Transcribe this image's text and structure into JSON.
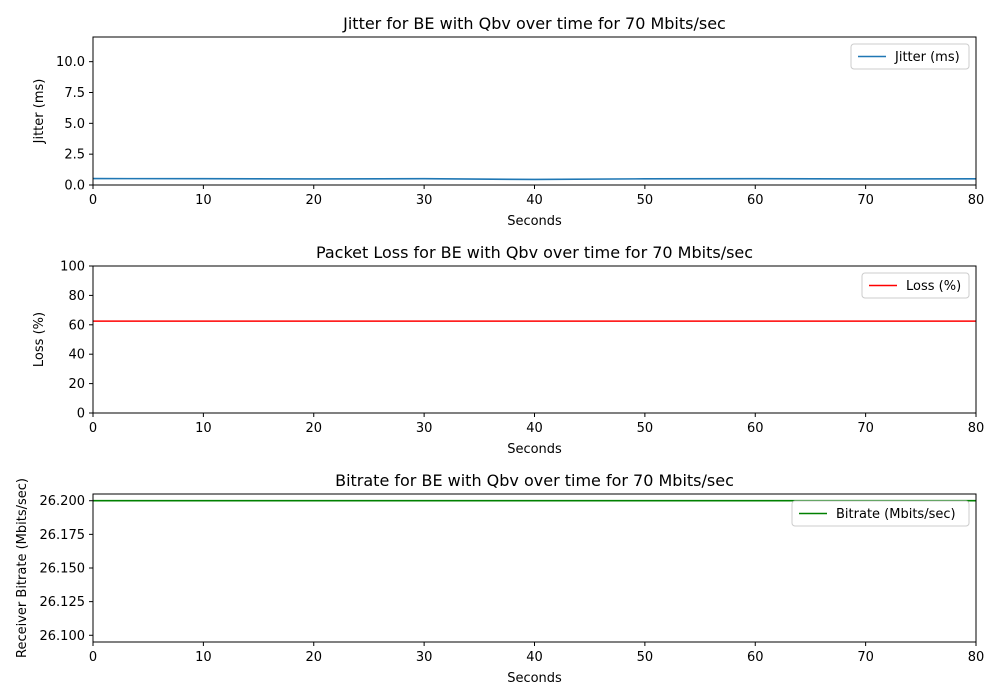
{
  "chart_data": [
    {
      "type": "line",
      "title": "Jitter for BE with Qbv over time for 70 Mbits/sec",
      "xlabel": "Seconds",
      "ylabel": "Jitter (ms)",
      "xlim": [
        0,
        80
      ],
      "ylim": [
        0,
        12
      ],
      "xticks": [
        0,
        10,
        20,
        30,
        40,
        50,
        60,
        70,
        80
      ],
      "yticks": [
        0.0,
        2.5,
        5.0,
        7.5,
        10.0
      ],
      "ytick_decimals": 1,
      "legend": "top-right",
      "grid": false,
      "series": [
        {
          "name": "Jitter (ms)",
          "color": "#1f77b4",
          "x": [
            0,
            10,
            20,
            30,
            40,
            50,
            60,
            70,
            80
          ],
          "y": [
            0.52,
            0.51,
            0.49,
            0.51,
            0.45,
            0.5,
            0.51,
            0.49,
            0.5
          ]
        }
      ]
    },
    {
      "type": "line",
      "title": "Packet Loss for BE with Qbv over time for 70 Mbits/sec",
      "xlabel": "Seconds",
      "ylabel": "Loss (%)",
      "xlim": [
        0,
        80
      ],
      "ylim": [
        0,
        100
      ],
      "xticks": [
        0,
        10,
        20,
        30,
        40,
        50,
        60,
        70,
        80
      ],
      "yticks": [
        0,
        20,
        40,
        60,
        80,
        100
      ],
      "ytick_decimals": 0,
      "legend": "top-right",
      "grid": false,
      "series": [
        {
          "name": "Loss (%)",
          "color": "#ff0000",
          "x": [
            0,
            80
          ],
          "y": [
            62.5,
            62.5
          ]
        }
      ]
    },
    {
      "type": "line",
      "title": "Bitrate for BE with Qbv over time for 70 Mbits/sec",
      "xlabel": "Seconds",
      "ylabel": "Receiver Bitrate (Mbits/sec)",
      "xlim": [
        0,
        80
      ],
      "ylim": [
        26.095,
        26.205
      ],
      "xticks": [
        0,
        10,
        20,
        30,
        40,
        50,
        60,
        70,
        80
      ],
      "yticks": [
        26.1,
        26.125,
        26.15,
        26.175,
        26.2
      ],
      "ytick_decimals": 3,
      "legend": "top-right",
      "grid": false,
      "series": [
        {
          "name": "Bitrate (Mbits/sec)",
          "color": "#008000",
          "x": [
            0,
            80
          ],
          "y": [
            26.2,
            26.2
          ]
        }
      ]
    }
  ]
}
